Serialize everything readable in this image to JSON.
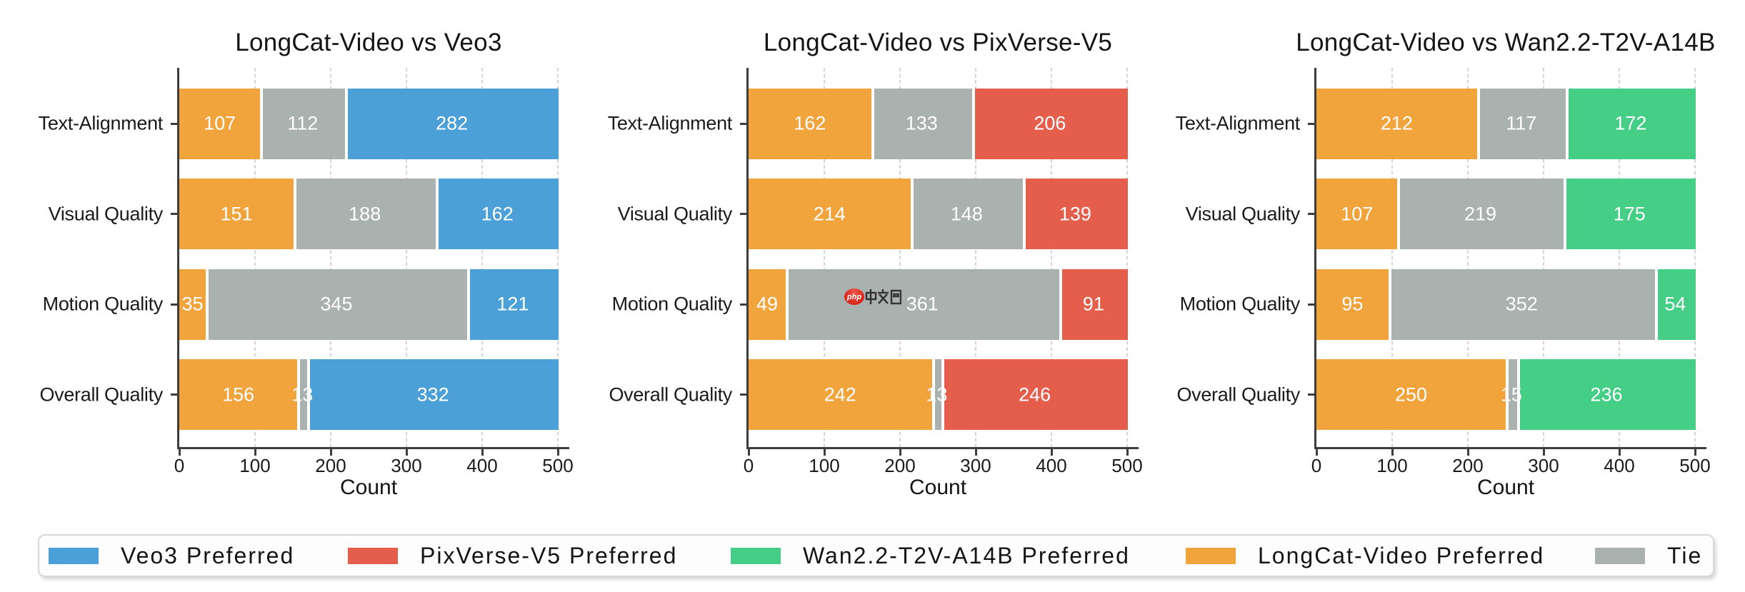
{
  "colors": {
    "longcat": "#F2A43C",
    "tie": "#AAB2AF",
    "veo3": "#4BA0D8",
    "pixverse": "#E55E4C",
    "wan": "#45CE85"
  },
  "chart_data": [
    {
      "type": "bar",
      "orientation": "horizontal",
      "stacked": true,
      "title": "LongCat-Video vs Veo3",
      "categories": [
        "Text-Alignment",
        "Visual Quality",
        "Motion Quality",
        "Overall Quality"
      ],
      "series": [
        {
          "name": "LongCat-Video Preferred",
          "color_key": "longcat",
          "values": [
            107,
            151,
            35,
            156
          ]
        },
        {
          "name": "Tie",
          "color_key": "tie",
          "values": [
            112,
            188,
            345,
            13
          ]
        },
        {
          "name": "Veo3 Preferred",
          "color_key": "veo3",
          "values": [
            282,
            162,
            121,
            332
          ]
        }
      ],
      "xlabel": "Count",
      "xlim": [
        0,
        500
      ],
      "xticks": [
        0,
        100,
        200,
        300,
        400,
        500
      ],
      "grid": true
    },
    {
      "type": "bar",
      "orientation": "horizontal",
      "stacked": true,
      "title": "LongCat-Video vs PixVerse-V5",
      "categories": [
        "Text-Alignment",
        "Visual Quality",
        "Motion Quality",
        "Overall Quality"
      ],
      "series": [
        {
          "name": "LongCat-Video Preferred",
          "color_key": "longcat",
          "values": [
            162,
            214,
            49,
            242
          ]
        },
        {
          "name": "Tie",
          "color_key": "tie",
          "values": [
            133,
            148,
            361,
            13
          ]
        },
        {
          "name": "PixVerse-V5 Preferred",
          "color_key": "pixverse",
          "values": [
            206,
            139,
            91,
            246
          ]
        }
      ],
      "xlabel": "Count",
      "xlim": [
        0,
        500
      ],
      "xticks": [
        0,
        100,
        200,
        300,
        400,
        500
      ],
      "grid": true
    },
    {
      "type": "bar",
      "orientation": "horizontal",
      "stacked": true,
      "title": "LongCat-Video vs Wan2.2-T2V-A14B",
      "categories": [
        "Text-Alignment",
        "Visual Quality",
        "Motion Quality",
        "Overall Quality"
      ],
      "series": [
        {
          "name": "LongCat-Video Preferred",
          "color_key": "longcat",
          "values": [
            212,
            107,
            95,
            250
          ]
        },
        {
          "name": "Tie",
          "color_key": "tie",
          "values": [
            117,
            219,
            352,
            15
          ]
        },
        {
          "name": "Wan2.2-T2V-A14B Preferred",
          "color_key": "wan",
          "values": [
            172,
            175,
            54,
            236
          ]
        }
      ],
      "xlabel": "Count",
      "xlim": [
        0,
        500
      ],
      "xticks": [
        0,
        100,
        200,
        300,
        400,
        500
      ],
      "grid": true
    }
  ],
  "legend": {
    "items": [
      {
        "label": "Veo3 Preferred",
        "color_key": "veo3"
      },
      {
        "label": "PixVerse-V5 Preferred",
        "color_key": "pixverse"
      },
      {
        "label": "Wan2.2-T2V-A14B Preferred",
        "color_key": "wan"
      },
      {
        "label": "LongCat-Video Preferred",
        "color_key": "longcat"
      },
      {
        "label": "Tie",
        "color_key": "tie"
      }
    ]
  },
  "watermark": {
    "badge_text": "php",
    "site_text": "中文网"
  }
}
